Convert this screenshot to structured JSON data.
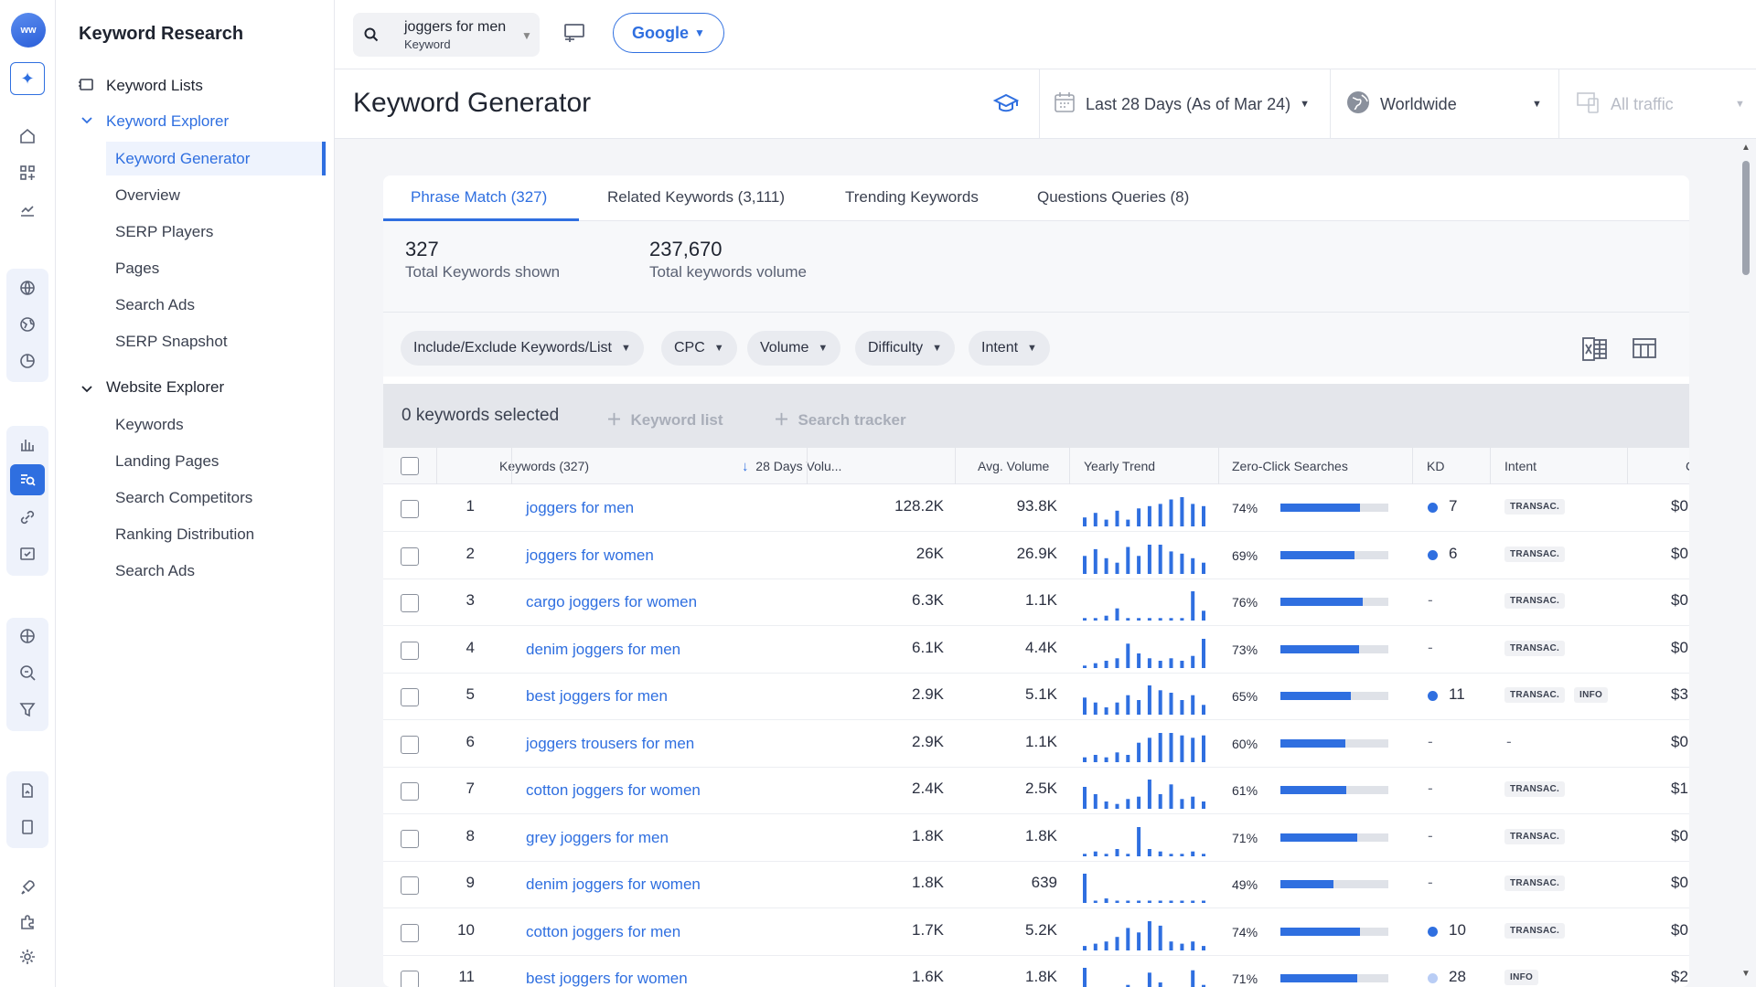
{
  "app": {
    "logo_text": "ww"
  },
  "sidebar": {
    "title": "Keyword Research",
    "keyword_lists": "Keyword Lists",
    "keyword_explorer": "Keyword Explorer",
    "explorer_items": [
      "Keyword Generator",
      "Overview",
      "SERP Players",
      "Pages",
      "Search Ads",
      "SERP Snapshot"
    ],
    "website_explorer": "Website Explorer",
    "website_items": [
      "Keywords",
      "Landing Pages",
      "Search Competitors",
      "Ranking Distribution",
      "Search Ads"
    ]
  },
  "topbar": {
    "search_value": "joggers for men",
    "search_type": "Keyword",
    "engine": "Google"
  },
  "header": {
    "title": "Keyword Generator",
    "date_range": "Last 28 Days (As of Mar 24)",
    "region": "Worldwide",
    "traffic": "All traffic"
  },
  "tabs": [
    "Phrase Match (327)",
    "Related Keywords (3,111)",
    "Trending Keywords",
    "Questions Queries (8)"
  ],
  "stats": {
    "total_shown": "327",
    "total_shown_label": "Total Keywords shown",
    "total_volume": "237,670",
    "total_volume_label": "Total keywords volume"
  },
  "filters": [
    "Include/Exclude Keywords/List",
    "CPC",
    "Volume",
    "Difficulty",
    "Intent"
  ],
  "selection": {
    "text": "0 keywords selected",
    "keyword_list": "Keyword list",
    "search_tracker": "Search tracker"
  },
  "table": {
    "headers": [
      "Keywords (327)",
      "28 Days Volu...",
      "Avg. Volume",
      "Yearly Trend",
      "Zero-Click Searches",
      "KD",
      "Intent",
      "C"
    ],
    "rows": [
      {
        "n": "1",
        "kw": "joggers for men",
        "vol": "128.2K",
        "avg": "93.8K",
        "zc": "74%",
        "zcv": 0.74,
        "kd": "7",
        "kdc": "#2f6fe0",
        "intent": [
          "TRANSAC."
        ],
        "cpc": "$0",
        "trend": [
          4,
          6,
          3,
          7,
          3,
          8,
          9,
          10,
          12,
          13,
          10,
          9
        ]
      },
      {
        "n": "2",
        "kw": "joggers for women",
        "vol": "26K",
        "avg": "26.9K",
        "zc": "69%",
        "zcv": 0.69,
        "kd": "6",
        "kdc": "#2f6fe0",
        "intent": [
          "TRANSAC."
        ],
        "cpc": "$0",
        "trend": [
          8,
          11,
          7,
          5,
          12,
          8,
          13,
          13,
          10,
          9,
          7,
          5
        ]
      },
      {
        "n": "3",
        "kw": "cargo joggers for women",
        "vol": "6.3K",
        "avg": "1.1K",
        "zc": "76%",
        "zcv": 0.76,
        "kd": "-",
        "kdc": "",
        "intent": [
          "TRANSAC."
        ],
        "cpc": "$0",
        "trend": [
          1,
          1,
          2,
          5,
          1,
          1,
          1,
          1,
          1,
          1,
          12,
          4
        ]
      },
      {
        "n": "4",
        "kw": "denim joggers for men",
        "vol": "6.1K",
        "avg": "4.4K",
        "zc": "73%",
        "zcv": 0.73,
        "kd": "-",
        "kdc": "",
        "intent": [
          "TRANSAC."
        ],
        "cpc": "$0",
        "trend": [
          1,
          2,
          3,
          4,
          10,
          6,
          4,
          3,
          4,
          3,
          5,
          12
        ]
      },
      {
        "n": "5",
        "kw": "best joggers for men",
        "vol": "2.9K",
        "avg": "5.1K",
        "zc": "65%",
        "zcv": 0.65,
        "kd": "11",
        "kdc": "#2f6fe0",
        "intent": [
          "TRANSAC.",
          "INFO"
        ],
        "cpc": "$3",
        "trend": [
          7,
          5,
          3,
          5,
          8,
          6,
          12,
          10,
          9,
          6,
          8,
          4
        ]
      },
      {
        "n": "6",
        "kw": "joggers trousers for men",
        "vol": "2.9K",
        "avg": "1.1K",
        "zc": "60%",
        "zcv": 0.6,
        "kd": "-",
        "kdc": "",
        "intent": [
          "-"
        ],
        "cpc": "$0",
        "trend": [
          2,
          3,
          2,
          4,
          3,
          8,
          10,
          12,
          12,
          11,
          10,
          11
        ]
      },
      {
        "n": "7",
        "kw": "cotton joggers for women",
        "vol": "2.4K",
        "avg": "2.5K",
        "zc": "61%",
        "zcv": 0.61,
        "kd": "-",
        "kdc": "",
        "intent": [
          "TRANSAC."
        ],
        "cpc": "$1",
        "trend": [
          9,
          6,
          3,
          2,
          4,
          5,
          12,
          6,
          10,
          4,
          5,
          3
        ]
      },
      {
        "n": "8",
        "kw": "grey joggers for men",
        "vol": "1.8K",
        "avg": "1.8K",
        "zc": "71%",
        "zcv": 0.71,
        "kd": "-",
        "kdc": "",
        "intent": [
          "TRANSAC."
        ],
        "cpc": "$0",
        "trend": [
          1,
          2,
          1,
          3,
          1,
          12,
          3,
          2,
          1,
          1,
          2,
          1
        ]
      },
      {
        "n": "9",
        "kw": "denim joggers for women",
        "vol": "1.8K",
        "avg": "639",
        "zc": "49%",
        "zcv": 0.49,
        "kd": "-",
        "kdc": "",
        "intent": [
          "TRANSAC."
        ],
        "cpc": "$0",
        "trend": [
          13,
          1,
          2,
          1,
          1,
          1,
          1,
          1,
          1,
          1,
          1,
          1
        ]
      },
      {
        "n": "10",
        "kw": "cotton joggers for men",
        "vol": "1.7K",
        "avg": "5.2K",
        "zc": "74%",
        "zcv": 0.74,
        "kd": "10",
        "kdc": "#2f6fe0",
        "intent": [
          "TRANSAC."
        ],
        "cpc": "$0",
        "trend": [
          2,
          3,
          4,
          6,
          10,
          8,
          13,
          11,
          4,
          3,
          4,
          2
        ]
      },
      {
        "n": "11",
        "kw": "best joggers for women",
        "vol": "1.6K",
        "avg": "1.8K",
        "zc": "71%",
        "zcv": 0.71,
        "kd": "28",
        "kdc": "#b9cdf5",
        "intent": [
          "INFO"
        ],
        "cpc": "$2",
        "trend": [
          12,
          4,
          3,
          2,
          5,
          4,
          10,
          6,
          4,
          3,
          11,
          5
        ]
      }
    ]
  }
}
